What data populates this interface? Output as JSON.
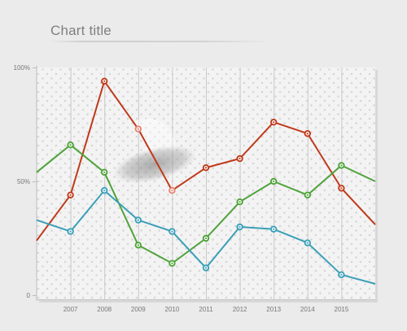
{
  "header": {
    "title": "Chart title"
  },
  "chart_data": {
    "type": "line",
    "title": "Chart title",
    "xlabel": "",
    "ylabel": "",
    "x_tick_labels": [
      "2007",
      "2008",
      "2009",
      "2010",
      "2011",
      "2012",
      "2013",
      "2014",
      "2015"
    ],
    "y_tick_labels": [
      "100%",
      "50%",
      "0"
    ],
    "ylim": [
      0,
      100
    ],
    "x": [
      2006,
      2007,
      2008,
      2009,
      2010,
      2011,
      2012,
      2013,
      2014,
      2015,
      2016
    ],
    "series": [
      {
        "color": "#bf3a1a",
        "values": [
          24,
          44,
          94,
          73,
          46,
          56,
          60,
          76,
          71,
          47,
          31
        ]
      },
      {
        "color": "#4fa33a",
        "values": [
          54,
          66,
          54,
          22,
          14,
          25,
          41,
          50,
          44,
          57,
          50
        ]
      },
      {
        "color": "#3a9fb8",
        "values": [
          33,
          28,
          46,
          33,
          28,
          12,
          30,
          29,
          23,
          9,
          5
        ]
      }
    ],
    "highlight": {
      "series": 0,
      "points": [
        3,
        4
      ],
      "color": "#e8846e"
    },
    "grid": true,
    "legend": "none"
  }
}
